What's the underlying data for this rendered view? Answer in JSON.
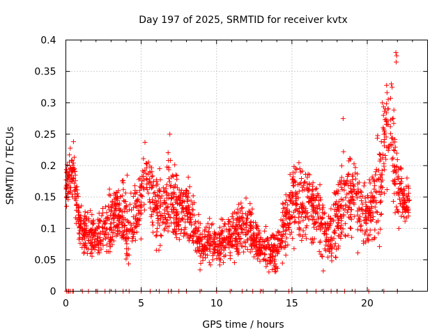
{
  "chart_data": {
    "type": "scatter",
    "title": "Day 197 of 2025, SRMTID for receiver kvtx",
    "xlabel": "GPS time / hours",
    "ylabel": "SRMTID / TECUs",
    "xlim": [
      0,
      24
    ],
    "ylim": [
      0,
      0.4
    ],
    "xticks": [
      0,
      5,
      10,
      15,
      20
    ],
    "xtick_labels": [
      "0",
      "5",
      "10",
      "15",
      "20"
    ],
    "yticks": [
      0,
      0.05,
      0.1,
      0.15,
      0.2,
      0.25,
      0.3,
      0.35,
      0.4
    ],
    "ytick_labels": [
      "0",
      "0.05",
      "0.1",
      "0.15",
      "0.2",
      "0.25",
      "0.3",
      "0.35",
      "0.4"
    ],
    "grid": true,
    "marker": "plus",
    "color": "#ff0000",
    "envelope": {
      "x": [
        0,
        0.3,
        0.5,
        0.7,
        1.0,
        1.5,
        2.0,
        2.5,
        3.0,
        3.5,
        4.0,
        4.5,
        5.0,
        5.3,
        5.6,
        6.0,
        6.5,
        7.0,
        7.5,
        8.0,
        8.5,
        9.0,
        9.5,
        10.0,
        10.5,
        11.0,
        11.5,
        12.0,
        12.5,
        13.0,
        13.5,
        14.0,
        14.5,
        15.0,
        15.5,
        16.0,
        16.5,
        17.0,
        17.5,
        18.0,
        18.5,
        19.0,
        19.5,
        20.0,
        20.5,
        21.0,
        21.3,
        21.6,
        22.0,
        22.5,
        22.8
      ],
      "center": [
        0.17,
        0.19,
        0.2,
        0.14,
        0.1,
        0.09,
        0.08,
        0.09,
        0.11,
        0.13,
        0.11,
        0.12,
        0.14,
        0.2,
        0.15,
        0.12,
        0.13,
        0.16,
        0.12,
        0.13,
        0.1,
        0.07,
        0.08,
        0.07,
        0.08,
        0.09,
        0.1,
        0.1,
        0.09,
        0.07,
        0.06,
        0.07,
        0.1,
        0.14,
        0.15,
        0.14,
        0.13,
        0.1,
        0.09,
        0.11,
        0.15,
        0.16,
        0.13,
        0.11,
        0.14,
        0.2,
        0.25,
        0.24,
        0.16,
        0.14,
        0.15
      ],
      "spread": [
        0.03,
        0.04,
        0.03,
        0.04,
        0.03,
        0.03,
        0.03,
        0.04,
        0.04,
        0.04,
        0.05,
        0.05,
        0.05,
        0.04,
        0.05,
        0.05,
        0.05,
        0.06,
        0.05,
        0.05,
        0.04,
        0.03,
        0.03,
        0.03,
        0.03,
        0.03,
        0.04,
        0.04,
        0.03,
        0.03,
        0.03,
        0.03,
        0.04,
        0.05,
        0.06,
        0.05,
        0.05,
        0.04,
        0.04,
        0.05,
        0.06,
        0.05,
        0.05,
        0.04,
        0.06,
        0.07,
        0.08,
        0.08,
        0.05,
        0.03,
        0.03
      ],
      "point_count": 2200
    },
    "peaks": [
      {
        "x": 21.9,
        "y": 0.38
      },
      {
        "x": 21.95,
        "y": 0.375
      },
      {
        "x": 21.92,
        "y": 0.365
      },
      {
        "x": 21.6,
        "y": 0.33
      },
      {
        "x": 21.65,
        "y": 0.325
      },
      {
        "x": 21.0,
        "y": 0.3
      },
      {
        "x": 18.4,
        "y": 0.275
      },
      {
        "x": 6.9,
        "y": 0.25
      }
    ],
    "zero_points": [
      0.05,
      0.15,
      0.2,
      0.3,
      0.45,
      0.5,
      1.1,
      1.5,
      2.0,
      2.1,
      2.6,
      2.9,
      3.3,
      3.8,
      4.2,
      5.0,
      5.6,
      6.2,
      6.8,
      7.0,
      7.5,
      8.0,
      8.9,
      10.0,
      10.9,
      11.7,
      12.4,
      12.9,
      13.1,
      13.9,
      14.8,
      15.0,
      16.0,
      16.6,
      17.1,
      17.6,
      18.0,
      18.5,
      19.2,
      20.1,
      21.1,
      22.0
    ]
  }
}
